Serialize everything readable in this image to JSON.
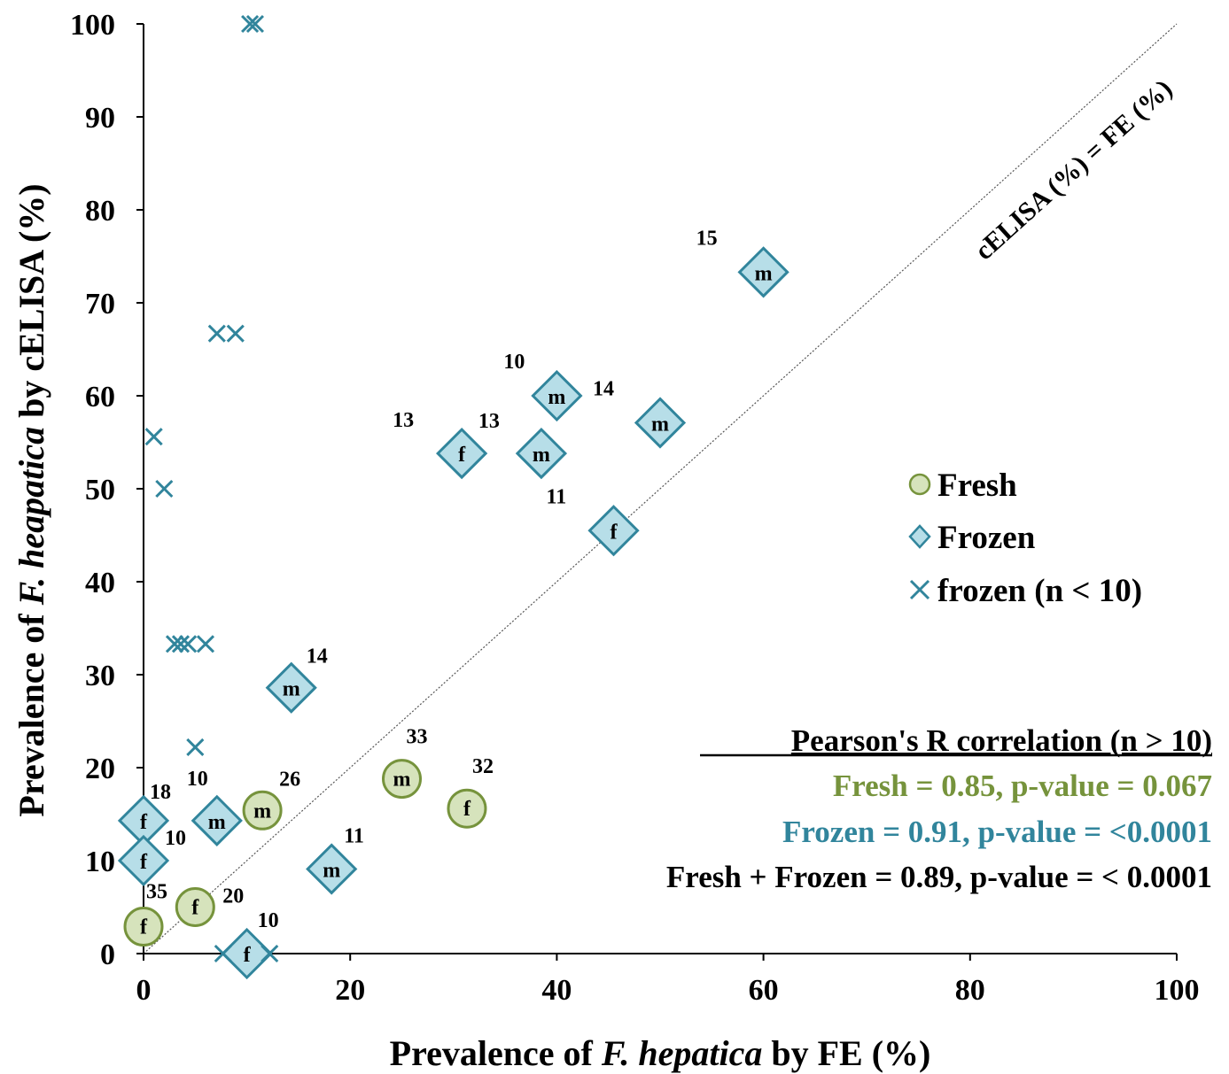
{
  "chart_data": {
    "type": "scatter",
    "xlabel_prefix": "Prevalence of ",
    "xlabel_italic": "F. hepatica",
    "xlabel_suffix": " by FE (%)",
    "ylabel_prefix": "Prevalence of ",
    "ylabel_italic": "F. heapatica",
    "ylabel_suffix": " by cELISA (%)",
    "xlim": [
      0,
      100
    ],
    "ylim": [
      0,
      100
    ],
    "x_ticks": [
      0,
      20,
      40,
      60,
      80,
      100
    ],
    "y_ticks": [
      0,
      10,
      20,
      30,
      40,
      50,
      60,
      70,
      80,
      90,
      100
    ],
    "grid": false,
    "identity_line_label": "cELISA (%) = FE (%)",
    "legend_position": "right",
    "colors": {
      "fresh_fill": "#d6e3bc",
      "fresh_edge": "#76933c",
      "frozen_fill": "#b7dee8",
      "frozen_edge": "#31859c",
      "fresh_text": "#76933c",
      "frozen_text": "#31859c",
      "combined_text": "#000000"
    },
    "series": [
      {
        "name": "Fresh",
        "marker": "circle",
        "points": [
          {
            "x": 0,
            "y": 2.9,
            "label": "f",
            "n": "35"
          },
          {
            "x": 5,
            "y": 5,
            "label": "f",
            "n": "20"
          },
          {
            "x": 11.5,
            "y": 15.4,
            "label": "m",
            "n": "26"
          },
          {
            "x": 25,
            "y": 18.8,
            "label": "m",
            "n": "33"
          },
          {
            "x": 31.3,
            "y": 15.6,
            "label": "f",
            "n": "32"
          }
        ]
      },
      {
        "name": "Frozen",
        "marker": "diamond",
        "points": [
          {
            "x": 0,
            "y": 14.3,
            "label": "f",
            "n": "18"
          },
          {
            "x": 0,
            "y": 10,
            "label": "f",
            "n": "10"
          },
          {
            "x": 10,
            "y": 0,
            "label": "f",
            "n": "10"
          },
          {
            "x": 7.1,
            "y": 14.3,
            "label": "m",
            "n": "10"
          },
          {
            "x": 18.2,
            "y": 9.1,
            "label": "m",
            "n": "11"
          },
          {
            "x": 14.3,
            "y": 28.6,
            "label": "m",
            "n": "14"
          },
          {
            "x": 30.8,
            "y": 53.8,
            "label": "f",
            "n": "13"
          },
          {
            "x": 38.5,
            "y": 53.8,
            "label": "m",
            "n": "13"
          },
          {
            "x": 40,
            "y": 60,
            "label": "m",
            "n": "10"
          },
          {
            "x": 50,
            "y": 57.1,
            "label": "m",
            "n": "14"
          },
          {
            "x": 45.5,
            "y": 45.5,
            "label": "f",
            "n": "11"
          },
          {
            "x": 60,
            "y": 73.3,
            "label": "m",
            "n": "15"
          }
        ]
      },
      {
        "name": "frozen (n < 10)",
        "marker": "x",
        "points": [
          {
            "x": 10.3,
            "y": 100
          },
          {
            "x": 10.8,
            "y": 100
          },
          {
            "x": 7.1,
            "y": 66.7
          },
          {
            "x": 8.9,
            "y": 66.7
          },
          {
            "x": 1,
            "y": 55.6
          },
          {
            "x": 2,
            "y": 50
          },
          {
            "x": 3,
            "y": 33.3
          },
          {
            "x": 3.6,
            "y": 33.3
          },
          {
            "x": 4.3,
            "y": 33.3
          },
          {
            "x": 6,
            "y": 33.3
          },
          {
            "x": 5,
            "y": 22.2
          },
          {
            "x": 7.7,
            "y": 0
          },
          {
            "x": 12.2,
            "y": 0
          }
        ]
      }
    ],
    "stats": {
      "title": "Pearson's R correlation (n > 10)",
      "fresh": "Fresh = 0.85, p-value = 0.067",
      "frozen": "Frozen = 0.91, p-value = <0.0001",
      "combined": "Fresh + Frozen = 0.89, p-value = < 0.0001"
    }
  }
}
